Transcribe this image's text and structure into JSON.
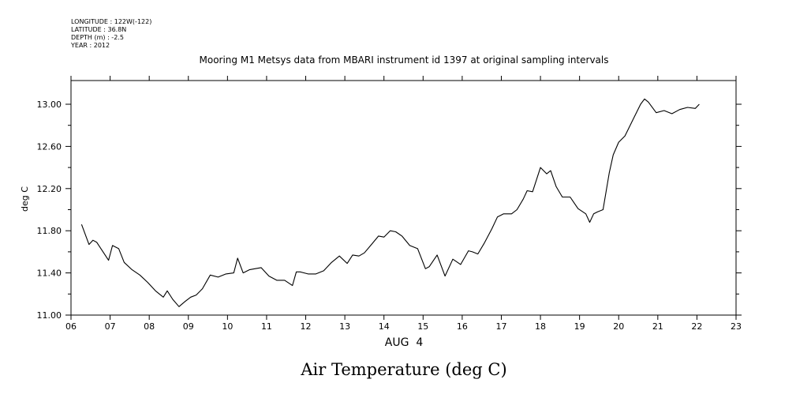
{
  "meta": [
    "LONGITUDE : 122W(-122)",
    "LATITUDE : 36.8N",
    "DEPTH (m) : -2.5",
    "YEAR : 2012"
  ],
  "chart_data": {
    "type": "line",
    "title": "Mooring M1 Metsys data from MBARI instrument id 1397 at original sampling intervals",
    "xlabel": "AUG  4",
    "ylabel": "deg C",
    "variable_title": "Air Temperature (deg C)",
    "xlim": [
      6,
      23
    ],
    "ylim": [
      11.0,
      13.2
    ],
    "x_ticks": [
      6,
      7,
      8,
      9,
      10,
      11,
      12,
      13,
      14,
      15,
      16,
      17,
      18,
      19,
      20,
      21,
      22,
      23
    ],
    "x_tick_labels": [
      "06",
      "07",
      "08",
      "09",
      "10",
      "11",
      "12",
      "13",
      "14",
      "15",
      "16",
      "17",
      "18",
      "19",
      "20",
      "21",
      "22",
      "23"
    ],
    "y_ticks": [
      11.0,
      11.4,
      11.8,
      12.2,
      12.6,
      13.0
    ],
    "y_tick_labels": [
      "11.00",
      "11.40",
      "11.80",
      "12.20",
      "12.60",
      "13.00"
    ],
    "y_minor_ticks": [
      11.2,
      11.6,
      12.0,
      12.4,
      12.8
    ],
    "grid": false,
    "series": [
      {
        "color": "#000000",
        "x": [
          6.27,
          6.46,
          6.56,
          6.66,
          6.8,
          6.96,
          7.06,
          7.22,
          7.36,
          7.56,
          7.76,
          7.96,
          8.16,
          8.36,
          8.46,
          8.6,
          8.76,
          8.92,
          9.06,
          9.2,
          9.36,
          9.56,
          9.76,
          9.96,
          10.16,
          10.26,
          10.4,
          10.56,
          10.7,
          10.86,
          11.06,
          11.26,
          11.46,
          11.66,
          11.76,
          11.86,
          12.06,
          12.26,
          12.46,
          12.66,
          12.86,
          13.06,
          13.2,
          13.36,
          13.5,
          13.66,
          13.86,
          14.0,
          14.16,
          14.3,
          14.46,
          14.66,
          14.86,
          15.06,
          15.16,
          15.36,
          15.56,
          15.76,
          15.96,
          16.16,
          16.26,
          16.4,
          16.56,
          16.76,
          16.9,
          17.06,
          17.26,
          17.4,
          17.56,
          17.66,
          17.8,
          18.0,
          18.16,
          18.26,
          18.4,
          18.56,
          18.76,
          18.96,
          19.16,
          19.26,
          19.36,
          19.46,
          19.6,
          19.76,
          19.86,
          20.0,
          20.16,
          20.36,
          20.56,
          20.66,
          20.76,
          20.96,
          21.16,
          21.36,
          21.56,
          21.76,
          21.96,
          22.06
        ],
        "values": [
          11.86,
          11.67,
          11.71,
          11.69,
          11.61,
          11.52,
          11.66,
          11.63,
          11.5,
          11.43,
          11.38,
          11.31,
          11.23,
          11.17,
          11.23,
          11.15,
          11.08,
          11.13,
          11.17,
          11.19,
          11.25,
          11.38,
          11.36,
          11.39,
          11.4,
          11.54,
          11.4,
          11.43,
          11.44,
          11.45,
          11.37,
          11.33,
          11.33,
          11.28,
          11.41,
          11.41,
          11.39,
          11.39,
          11.42,
          11.5,
          11.56,
          11.49,
          11.57,
          11.56,
          11.59,
          11.66,
          11.75,
          11.74,
          11.8,
          11.79,
          11.75,
          11.66,
          11.63,
          11.44,
          11.46,
          11.57,
          11.37,
          11.53,
          11.48,
          11.61,
          11.6,
          11.58,
          11.68,
          11.82,
          11.93,
          11.96,
          11.96,
          12.0,
          12.1,
          12.18,
          12.17,
          12.4,
          12.34,
          12.37,
          12.22,
          12.12,
          12.12,
          12.01,
          11.96,
          11.88,
          11.96,
          11.98,
          12.0,
          12.35,
          12.52,
          12.64,
          12.7,
          12.85,
          13.0,
          13.05,
          13.02,
          12.92,
          12.94,
          12.91,
          12.95,
          12.97,
          12.96,
          13.0
        ]
      }
    ]
  }
}
